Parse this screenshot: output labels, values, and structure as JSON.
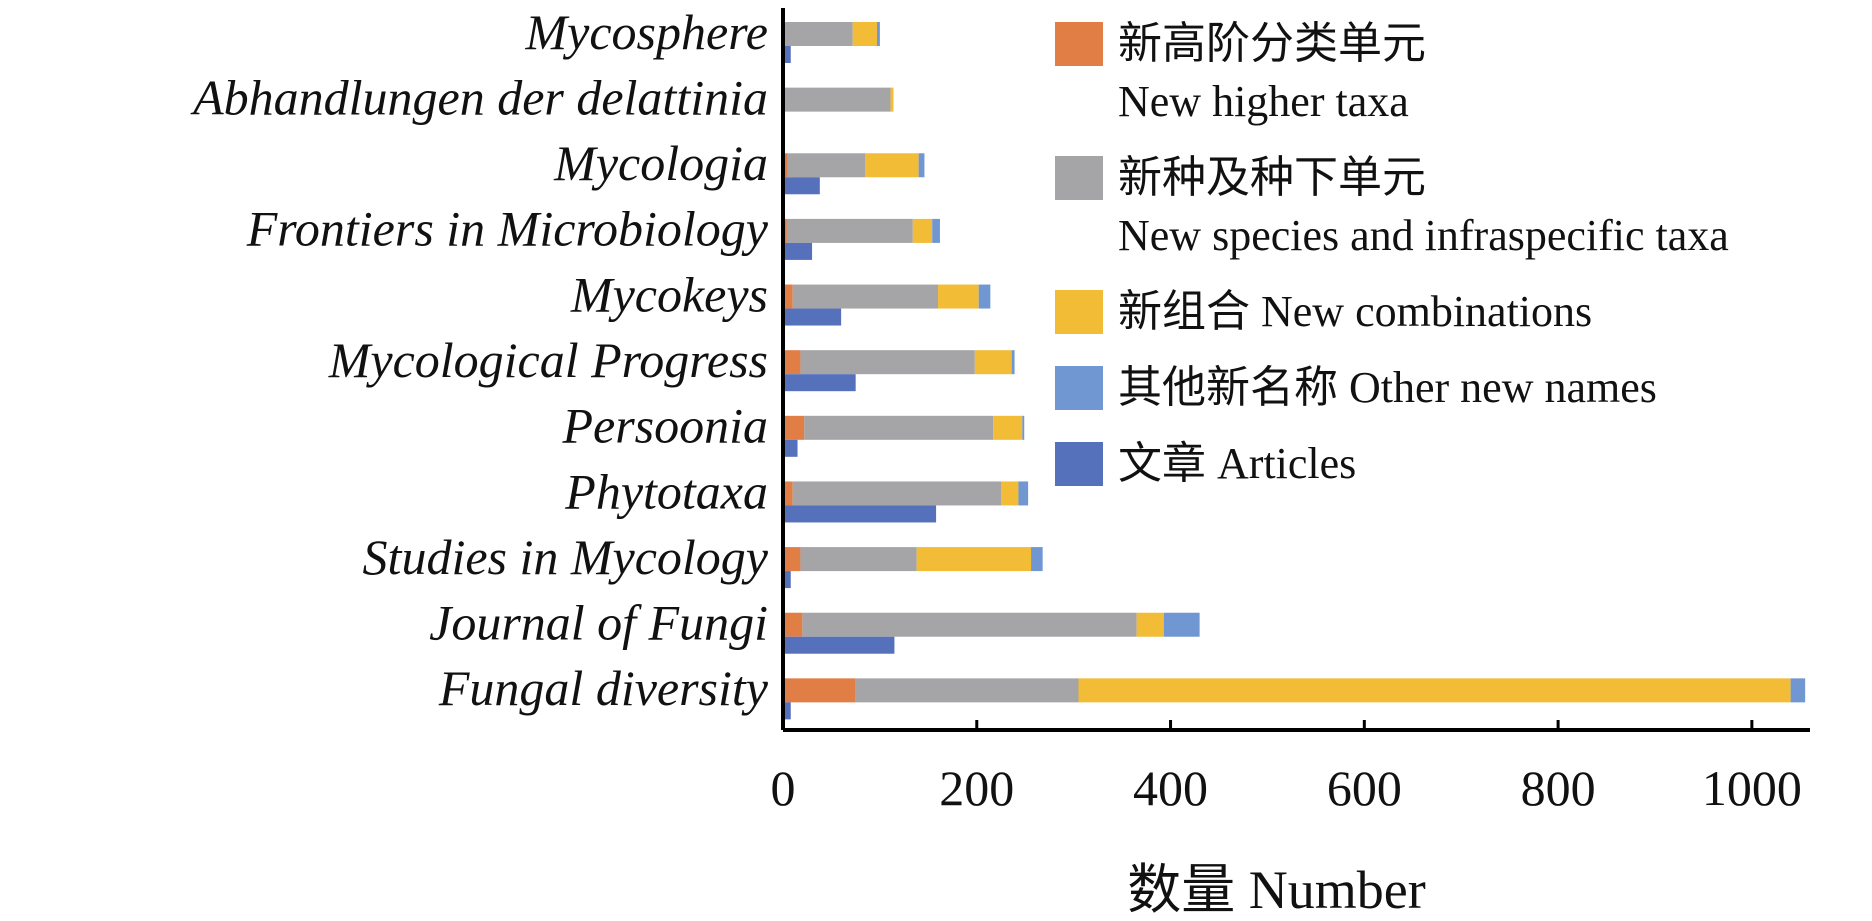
{
  "chart_data": {
    "type": "bar",
    "orientation": "horizontal",
    "stacked_series_and_articles_bar": true,
    "categories": [
      "Mycosphere",
      "Abhandlungen der delattinia",
      "Mycologia",
      "Frontiers in Microbiology",
      "Mycokeys",
      "Mycological Progress",
      "Persoonia",
      "Phytotaxa",
      "Studies in Mycology",
      "Journal of Fungi",
      "Fungal diversity"
    ],
    "series": [
      {
        "name": "新高阶分类单元",
        "name_en": "New higher taxa",
        "color": "#E07E46",
        "stack": "names",
        "values": [
          2,
          1,
          5,
          4,
          10,
          18,
          22,
          10,
          18,
          20,
          75
        ]
      },
      {
        "name": "新种及种下单元",
        "name_en": "New species and infraspecific taxa",
        "color": "#A5A5A7",
        "stack": "names",
        "values": [
          70,
          110,
          80,
          130,
          150,
          180,
          195,
          215,
          120,
          345,
          230
        ]
      },
      {
        "name": "新组合 New combinations",
        "color": "#F2BC36",
        "stack": "names",
        "values": [
          25,
          3,
          55,
          20,
          42,
          38,
          30,
          18,
          118,
          28,
          735
        ]
      },
      {
        "name": "其他新名称 Other new names",
        "color": "#7097D1",
        "stack": "names",
        "values": [
          3,
          0,
          6,
          8,
          12,
          3,
          2,
          10,
          12,
          37,
          15
        ]
      },
      {
        "name": "文章 Articles",
        "color": "#5671BC",
        "stack": "articles",
        "values": [
          8,
          2,
          38,
          30,
          60,
          75,
          15,
          158,
          8,
          115,
          8
        ]
      }
    ],
    "xlim": [
      0,
      1060
    ],
    "xticks": [
      "0",
      "200",
      "400",
      "600",
      "800",
      "1000"
    ],
    "xlabel": "数量 Number",
    "ylabel": "",
    "title": "",
    "grid": false,
    "legend_position": "top-right"
  }
}
